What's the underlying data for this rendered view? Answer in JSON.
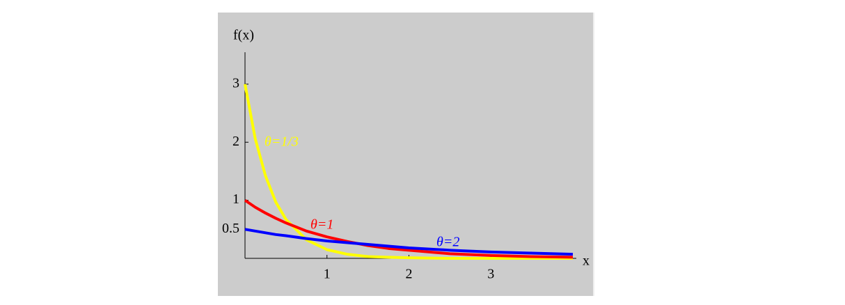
{
  "chart_data": {
    "type": "line",
    "x_label": "x",
    "y_label": "f(x)",
    "x": [
      0,
      0.125,
      0.25,
      0.375,
      0.5,
      0.75,
      1,
      1.25,
      1.5,
      1.75,
      2,
      2.5,
      3,
      3.5,
      4
    ],
    "series": [
      {
        "name": "θ=1/3",
        "color": "#ffff00",
        "values": [
          3,
          2.06,
          1.42,
          0.97,
          0.67,
          0.32,
          0.15,
          0.07,
          0.03,
          0.02,
          0.01,
          0,
          0,
          0,
          0
        ]
      },
      {
        "name": "θ=1",
        "color": "#ff0000",
        "values": [
          1,
          0.88,
          0.78,
          0.69,
          0.61,
          0.47,
          0.37,
          0.29,
          0.22,
          0.17,
          0.14,
          0.08,
          0.05,
          0.03,
          0.02
        ]
      },
      {
        "name": "θ=2",
        "color": "#0000ff",
        "values": [
          0.5,
          0.47,
          0.44,
          0.41,
          0.39,
          0.34,
          0.3,
          0.27,
          0.24,
          0.21,
          0.18,
          0.14,
          0.11,
          0.09,
          0.07
        ]
      }
    ],
    "xlim": [
      0,
      4
    ],
    "ylim": [
      0,
      3.55
    ],
    "xticks": [
      1,
      2,
      3
    ],
    "yticks": [
      0.5,
      1,
      2,
      3
    ]
  }
}
